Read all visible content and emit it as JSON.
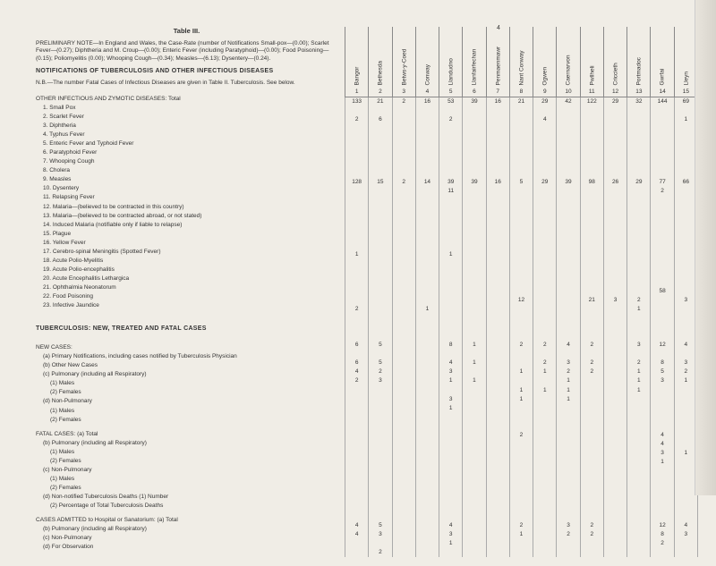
{
  "page_number": "4",
  "table_title": "Table III.",
  "prelim_note": "PRELIMINARY NOTE—In England and Wales, the Case-Rate (number of Notifications\nSmall-pox—(0.00); Scarlet Fever—(0.27); Diphtheria and M. Croup—(0.00); Enteric Fever (including Paratyphoid)—(0.00); Food Poisoning—(0.15); Poliomyelitis (0.00); Whooping Cough—(0.34); Measles—(6.13); Dysentery—(0.24).",
  "notif_heading": "NOTIFICATIONS OF TUBERCULOSIS AND OTHER INFECTIOUS DISEASES",
  "nb_note": "N.B.—The number Fatal Cases of Infectious Diseases are given in Table II. Tuberculosis. See below.",
  "other_heading": "OTHER INFECTIOUS AND ZYMOTIC DISEASES: Total",
  "diseases": [
    "1. Small Pox",
    "2. Scarlet Fever",
    "3. Diphtheria",
    "4. Typhus Fever",
    "5. Enteric Fever and Typhoid Fever",
    "6. Paratyphoid Fever",
    "7. Whooping Cough",
    "8. Cholera",
    "9. Measles",
    "10. Dysentery",
    "11. Relapsing Fever",
    "12. Malaria—(believed to be contracted in this country)",
    "13. Malaria—(believed to be contracted abroad, or not stated)",
    "14. Induced Malaria (notifiable only if liable to relapse)",
    "15. Plague",
    "16. Yellow Fever",
    "17. Cerebro-spinal Meningitis (Spotted Fever)",
    "18. Acute Polio-Myelitis",
    "19. Acute Polio-encephalitis",
    "20. Acute Encephalitis Lethargica",
    "21. Ophthalmia Neonatorum",
    "22. Food Poisoning",
    "23. Infective Jaundice"
  ],
  "tb_heading": "TUBERCULOSIS: NEW, TREATED AND FATAL CASES",
  "new_cases_heading": "NEW CASES:",
  "new_cases": [
    "(a) Primary Notifications, including cases notified by Tuberculosis Physician",
    "(b) Other New Cases",
    "(c) Pulmonary (including all Respiratory)",
    "(1) Males",
    "(2) Females",
    "(d) Non-Pulmonary",
    "(1) Males",
    "(2) Females"
  ],
  "fatal_heading": "FATAL CASES: (a) Total",
  "fatal_cases": [
    "(b) Pulmonary (including all Respiratory)",
    "(1) Males",
    "(2) Females",
    "(c) Non-Pulmonary",
    "(1) Males",
    "(2) Females",
    "(d) Non-notified Tuberculosis Deaths (1) Number",
    "(2) Percentage of Total Tuberculosis Deaths"
  ],
  "admitted_heading": "CASES ADMITTED to Hospital or Sanatorium: (a) Total",
  "admitted": [
    "(b) Pulmonary (including all Respiratory)",
    "(c) Non-Pulmonary",
    "(d) For Observation"
  ],
  "columns": [
    {
      "num": "1",
      "label": "Bangor"
    },
    {
      "num": "2",
      "label": "Bethesda"
    },
    {
      "num": "3",
      "label": "Betws-y-Coed"
    },
    {
      "num": "4",
      "label": "Conway"
    },
    {
      "num": "5",
      "label": "Llandudno"
    },
    {
      "num": "6",
      "label": "Llanfairfechan"
    },
    {
      "num": "7",
      "label": "Penmaenmawr"
    },
    {
      "num": "8",
      "label": "Nant Conway"
    },
    {
      "num": "9",
      "label": "Ogwen"
    },
    {
      "num": "10",
      "label": "Caernarvon"
    },
    {
      "num": "11",
      "label": "Pwllheli"
    },
    {
      "num": "12",
      "label": "Criccieth"
    },
    {
      "num": "13",
      "label": "Portmadoc"
    },
    {
      "num": "14",
      "label": "Gwrfai"
    },
    {
      "num": "15",
      "label": "Lleyn"
    }
  ],
  "rows": [
    [
      "133",
      "21",
      "2",
      "16",
      "53",
      "39",
      "16",
      "21",
      "29",
      "42",
      "122",
      "29",
      "32",
      "144",
      "69"
    ],
    [
      "",
      "",
      "",
      "",
      "",
      "",
      "",
      "",
      "",
      "",
      "",
      "",
      "",
      "",
      ""
    ],
    [
      "2",
      "6",
      "",
      "",
      "2",
      "",
      "",
      "",
      "4",
      "",
      "",
      "",
      "",
      "",
      "1"
    ],
    [
      "",
      "",
      "",
      "",
      "",
      "",
      "",
      "",
      "",
      "",
      "",
      "",
      "",
      "",
      ""
    ],
    [
      "",
      "",
      "",
      "",
      "",
      "",
      "",
      "",
      "",
      "",
      "",
      "",
      "",
      "",
      ""
    ],
    [
      "",
      "",
      "",
      "",
      "",
      "",
      "",
      "",
      "",
      "",
      "",
      "",
      "",
      "",
      ""
    ],
    [
      "",
      "",
      "",
      "",
      "",
      "",
      "",
      "",
      "",
      "",
      "",
      "",
      "",
      "",
      ""
    ],
    [
      "",
      "",
      "",
      "",
      "",
      "",
      "",
      "",
      "",
      "",
      "",
      "",
      "",
      "",
      ""
    ],
    [
      "",
      "",
      "",
      "",
      "",
      "",
      "",
      "",
      "",
      "",
      "",
      "",
      "",
      "",
      ""
    ],
    [
      "128",
      "15",
      "2",
      "14",
      "39",
      "39",
      "16",
      "5",
      "29",
      "39",
      "98",
      "26",
      "29",
      "77",
      "66"
    ],
    [
      "",
      "",
      "",
      "",
      "11",
      "",
      "",
      "",
      "",
      "",
      "",
      "",
      "",
      "2",
      ""
    ],
    [
      "",
      "",
      "",
      "",
      "",
      "",
      "",
      "",
      "",
      "",
      "",
      "",
      "",
      "",
      ""
    ],
    [
      "",
      "",
      "",
      "",
      "",
      "",
      "",
      "",
      "",
      "",
      "",
      "",
      "",
      "",
      ""
    ],
    [
      "",
      "",
      "",
      "",
      "",
      "",
      "",
      "",
      "",
      "",
      "",
      "",
      "",
      "",
      ""
    ],
    [
      "",
      "",
      "",
      "",
      "",
      "",
      "",
      "",
      "",
      "",
      "",
      "",
      "",
      "",
      ""
    ],
    [
      "",
      "",
      "",
      "",
      "",
      "",
      "",
      "",
      "",
      "",
      "",
      "",
      "",
      "",
      ""
    ],
    [
      "",
      "",
      "",
      "",
      "",
      "",
      "",
      "",
      "",
      "",
      "",
      "",
      "",
      "",
      ""
    ],
    [
      "1",
      "",
      "",
      "",
      "1",
      "",
      "",
      "",
      "",
      "",
      "",
      "",
      "",
      "",
      ""
    ],
    [
      "",
      "",
      "",
      "",
      "",
      "",
      "",
      "",
      "",
      "",
      "",
      "",
      "",
      "",
      ""
    ],
    [
      "",
      "",
      "",
      "",
      "",
      "",
      "",
      "",
      "",
      "",
      "",
      "",
      "",
      "",
      ""
    ],
    [
      "",
      "",
      "",
      "",
      "",
      "",
      "",
      "",
      "",
      "",
      "",
      "",
      "",
      "",
      ""
    ],
    [
      "",
      "",
      "",
      "",
      "",
      "",
      "",
      "",
      "",
      "",
      "",
      "",
      "",
      "58",
      ""
    ],
    [
      "",
      "",
      "",
      "",
      "",
      "",
      "",
      "12",
      "",
      "",
      "21",
      "3",
      "2",
      "",
      "3"
    ],
    [
      "2",
      "",
      "",
      "1",
      "",
      "",
      "",
      "",
      "",
      "",
      "",
      "",
      "1",
      "",
      ""
    ],
    [
      "",
      "",
      "",
      "",
      "",
      "",
      "",
      "",
      "",
      "",
      "",
      "",
      "",
      "",
      ""
    ],
    [
      "",
      "",
      "",
      "",
      "",
      "",
      "",
      "",
      "",
      "",
      "",
      "",
      "",
      "",
      ""
    ],
    [
      "",
      "",
      "",
      "",
      "",
      "",
      "",
      "",
      "",
      "",
      "",
      "",
      "",
      "",
      ""
    ],
    [
      "6",
      "5",
      "",
      "",
      "8",
      "1",
      "",
      "2",
      "2",
      "4",
      "2",
      "",
      "3",
      "12",
      "4"
    ],
    [
      "",
      "",
      "",
      "",
      "",
      "",
      "",
      "",
      "",
      "",
      "",
      "",
      "",
      "",
      ""
    ],
    [
      "6",
      "5",
      "",
      "",
      "4",
      "1",
      "",
      "",
      "2",
      "3",
      "2",
      "",
      "2",
      "8",
      "3"
    ],
    [
      "4",
      "2",
      "",
      "",
      "3",
      "",
      "",
      "1",
      "1",
      "2",
      "2",
      "",
      "1",
      "5",
      "2"
    ],
    [
      "2",
      "3",
      "",
      "",
      "1",
      "1",
      "",
      "",
      "",
      "1",
      "",
      "",
      "1",
      "3",
      "1"
    ],
    [
      "",
      "",
      "",
      "",
      "",
      "",
      "",
      "1",
      "1",
      "1",
      "",
      "",
      "1",
      "",
      ""
    ],
    [
      "",
      "",
      "",
      "",
      "3",
      "",
      "",
      "1",
      "",
      "1",
      "",
      "",
      "",
      "",
      ""
    ],
    [
      "",
      "",
      "",
      "",
      "1",
      "",
      "",
      "",
      "",
      "",
      "",
      "",
      "",
      "",
      ""
    ],
    [
      "",
      "",
      "",
      "",
      "",
      "",
      "",
      "",
      "",
      "",
      "",
      "",
      "",
      "",
      ""
    ],
    [
      "",
      "",
      "",
      "",
      "",
      "",
      "",
      "",
      "",
      "",
      "",
      "",
      "",
      "",
      ""
    ],
    [
      "",
      "",
      "",
      "",
      "",
      "",
      "",
      "2",
      "",
      "",
      "",
      "",
      "",
      "4",
      ""
    ],
    [
      "",
      "",
      "",
      "",
      "",
      "",
      "",
      "",
      "",
      "",
      "",
      "",
      "",
      "4",
      ""
    ],
    [
      "",
      "",
      "",
      "",
      "",
      "",
      "",
      "",
      "",
      "",
      "",
      "",
      "",
      "3",
      "1"
    ],
    [
      "",
      "",
      "",
      "",
      "",
      "",
      "",
      "",
      "",
      "",
      "",
      "",
      "",
      "1",
      ""
    ],
    [
      "",
      "",
      "",
      "",
      "",
      "",
      "",
      "",
      "",
      "",
      "",
      "",
      "",
      "",
      ""
    ],
    [
      "",
      "",
      "",
      "",
      "",
      "",
      "",
      "",
      "",
      "",
      "",
      "",
      "",
      "",
      ""
    ],
    [
      "",
      "",
      "",
      "",
      "",
      "",
      "",
      "",
      "",
      "",
      "",
      "",
      "",
      "",
      ""
    ],
    [
      "",
      "",
      "",
      "",
      "",
      "",
      "",
      "",
      "",
      "",
      "",
      "",
      "",
      "",
      ""
    ],
    [
      "",
      "",
      "",
      "",
      "",
      "",
      "",
      "",
      "",
      "",
      "",
      "",
      "",
      "",
      ""
    ],
    [
      "",
      "",
      "",
      "",
      "",
      "",
      "",
      "",
      "",
      "",
      "",
      "",
      "",
      "",
      ""
    ],
    [
      "4",
      "5",
      "",
      "",
      "4",
      "",
      "",
      "2",
      "",
      "3",
      "2",
      "",
      "",
      "12",
      "4"
    ],
    [
      "4",
      "3",
      "",
      "",
      "3",
      "",
      "",
      "1",
      "",
      "2",
      "2",
      "",
      "",
      "8",
      "3"
    ],
    [
      "",
      "",
      "",
      "",
      "1",
      "",
      "",
      "",
      "",
      "",
      "",
      "",
      "",
      "2",
      ""
    ],
    [
      "",
      "2",
      "",
      "",
      "",
      "",
      "",
      "",
      "",
      "",
      "",
      "",
      "",
      "",
      ""
    ]
  ]
}
